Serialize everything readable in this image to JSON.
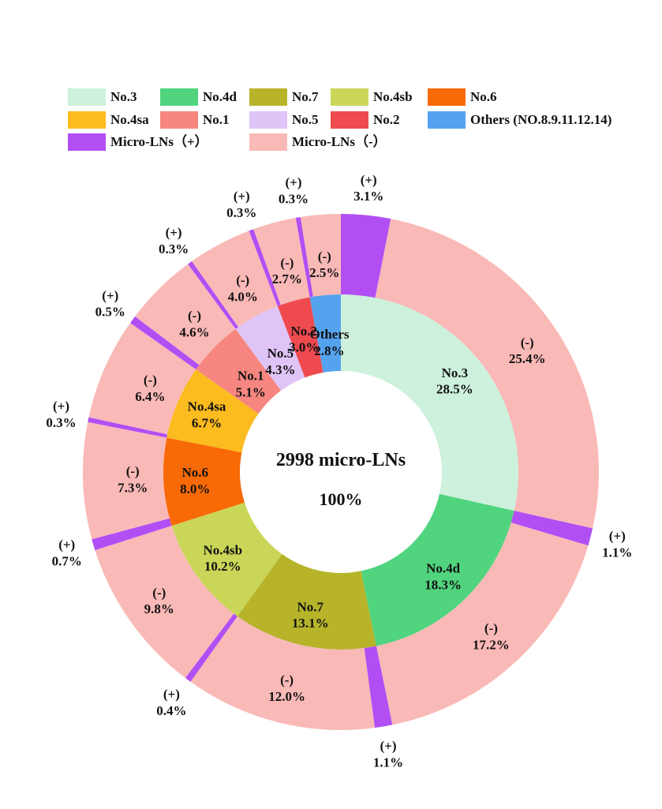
{
  "chart_data": {
    "type": "pie",
    "subtype": "nested-donut",
    "center_title": "2998 micro-LNs",
    "center_value": "100%",
    "legend": [
      {
        "label": "No.3",
        "color": "#cdf1dc"
      },
      {
        "label": "No.4d",
        "color": "#50d47e"
      },
      {
        "label": "No.7",
        "color": "#b7b42a"
      },
      {
        "label": "No.4sb",
        "color": "#cad658"
      },
      {
        "label": "No.6",
        "color": "#f86a06"
      },
      {
        "label": "No.4sa",
        "color": "#fcbb1e"
      },
      {
        "label": "No.1",
        "color": "#f6867f"
      },
      {
        "label": "No.5",
        "color": "#dfc4f7"
      },
      {
        "label": "No.2",
        "color": "#ef4a4f"
      },
      {
        "label": "Others (NO.8.9.11.12.14)",
        "color": "#55a3ef"
      },
      {
        "label": "Micro-LNs（+）",
        "color": "#b14ff5"
      },
      {
        "label": "Micro-LNs（-）",
        "color": "#f9b9b7"
      }
    ],
    "inner_ring": [
      {
        "name": "No.3",
        "value": 28.5,
        "label": "No.3",
        "pct": "28.5%",
        "color": "#cdf1dc"
      },
      {
        "name": "No.4d",
        "value": 18.3,
        "label": "No.4d",
        "pct": "18.3%",
        "color": "#50d47e"
      },
      {
        "name": "No.7",
        "value": 13.1,
        "label": "No.7",
        "pct": "13.1%",
        "color": "#b7b42a"
      },
      {
        "name": "No.4sb",
        "value": 10.2,
        "label": "No.4sb",
        "pct": "10.2%",
        "color": "#cad658"
      },
      {
        "name": "No.6",
        "value": 8.0,
        "label": "No.6",
        "pct": "8.0%",
        "color": "#f86a06"
      },
      {
        "name": "No.4sa",
        "value": 6.7,
        "label": "No.4sa",
        "pct": "6.7%",
        "color": "#fcbb1e"
      },
      {
        "name": "No.1",
        "value": 5.1,
        "label": "No.1",
        "pct": "5.1%",
        "color": "#f6867f"
      },
      {
        "name": "No.5",
        "value": 4.3,
        "label": "No.5",
        "pct": "4.3%",
        "color": "#dfc4f7"
      },
      {
        "name": "No.2",
        "value": 3.0,
        "label": "No.2",
        "pct": "3.0%",
        "color": "#ef4a4f"
      },
      {
        "name": "Others",
        "value": 2.8,
        "label": "Others",
        "pct": "2.8%",
        "color": "#55a3ef"
      }
    ],
    "outer_ring": [
      {
        "group": "No.3",
        "sign": "(+)",
        "value": 3.1,
        "pct": "3.1%",
        "color": "#b14ff5"
      },
      {
        "group": "No.3",
        "sign": "(-)",
        "value": 25.4,
        "pct": "25.4%",
        "color": "#f9b9b7"
      },
      {
        "group": "No.4d",
        "sign": "(+)",
        "value": 1.1,
        "pct": "1.1%",
        "color": "#b14ff5"
      },
      {
        "group": "No.4d",
        "sign": "(-)",
        "value": 17.2,
        "pct": "17.2%",
        "color": "#f9b9b7"
      },
      {
        "group": "No.7",
        "sign": "(+)",
        "value": 1.1,
        "pct": "1.1%",
        "color": "#b14ff5"
      },
      {
        "group": "No.7",
        "sign": "(-)",
        "value": 12.0,
        "pct": "12.0%",
        "color": "#f9b9b7"
      },
      {
        "group": "No.4sb",
        "sign": "(+)",
        "value": 0.4,
        "pct": "0.4%",
        "color": "#b14ff5"
      },
      {
        "group": "No.4sb",
        "sign": "(-)",
        "value": 9.8,
        "pct": "9.8%",
        "color": "#f9b9b7"
      },
      {
        "group": "No.6",
        "sign": "(+)",
        "value": 0.7,
        "pct": "0.7%",
        "color": "#b14ff5"
      },
      {
        "group": "No.6",
        "sign": "(-)",
        "value": 7.3,
        "pct": "7.3%",
        "color": "#f9b9b7"
      },
      {
        "group": "No.4sa",
        "sign": "(+)",
        "value": 0.3,
        "pct": "0.3%",
        "color": "#b14ff5"
      },
      {
        "group": "No.4sa",
        "sign": "(-)",
        "value": 6.4,
        "pct": "6.4%",
        "color": "#f9b9b7"
      },
      {
        "group": "No.1",
        "sign": "(+)",
        "value": 0.5,
        "pct": "0.5%",
        "color": "#b14ff5"
      },
      {
        "group": "No.1",
        "sign": "(-)",
        "value": 4.6,
        "pct": "4.6%",
        "color": "#f9b9b7"
      },
      {
        "group": "No.5",
        "sign": "(+)",
        "value": 0.3,
        "pct": "0.3%",
        "color": "#b14ff5"
      },
      {
        "group": "No.5",
        "sign": "(-)",
        "value": 4.0,
        "pct": "4.0%",
        "color": "#f9b9b7"
      },
      {
        "group": "No.2",
        "sign": "(+)",
        "value": 0.3,
        "pct": "0.3%",
        "color": "#b14ff5"
      },
      {
        "group": "No.2",
        "sign": "(-)",
        "value": 2.7,
        "pct": "2.7%",
        "color": "#f9b9b7"
      },
      {
        "group": "Others",
        "sign": "(+)",
        "value": 0.3,
        "pct": "0.3%",
        "color": "#b14ff5"
      },
      {
        "group": "Others",
        "sign": "(-)",
        "value": 2.5,
        "pct": "2.5%",
        "color": "#f9b9b7"
      }
    ]
  }
}
